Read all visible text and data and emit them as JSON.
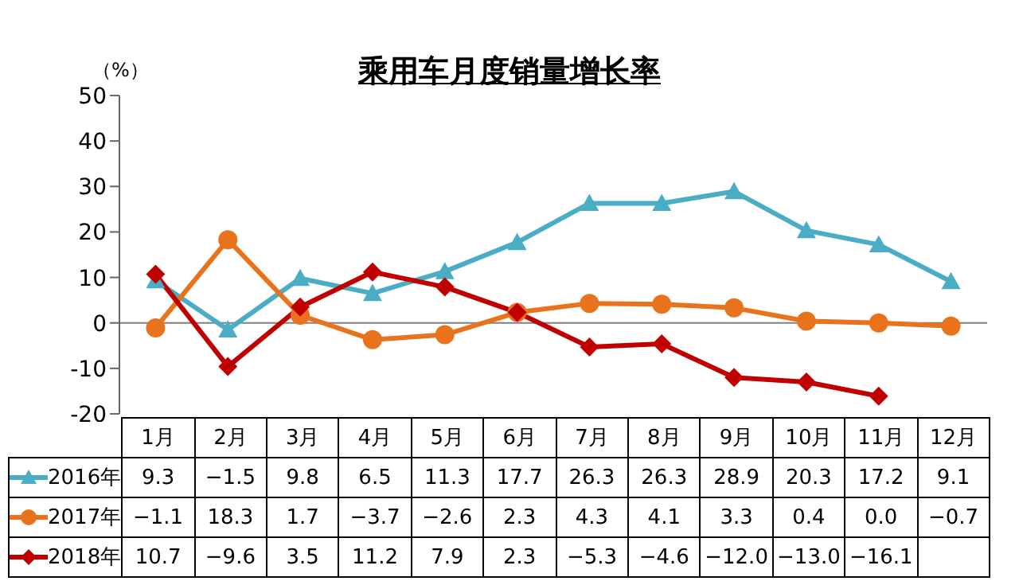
{
  "chart_data": {
    "type": "line",
    "title": "乘用车月度销量增长率",
    "ylabel": "（%）",
    "categories": [
      "1月",
      "2月",
      "3月",
      "4月",
      "5月",
      "6月",
      "7月",
      "8月",
      "9月",
      "10月",
      "11月",
      "12月"
    ],
    "series": [
      {
        "name": "2016年",
        "color": "#4bacc6",
        "marker": "triangle",
        "values": [
          9.3,
          -1.5,
          9.8,
          6.5,
          11.3,
          17.7,
          26.3,
          26.3,
          28.9,
          20.3,
          17.2,
          9.1
        ],
        "value_labels": [
          "9.3",
          "−1.5",
          "9.8",
          "6.5",
          "11.3",
          "17.7",
          "26.3",
          "26.3",
          "28.9",
          "20.3",
          "17.2",
          "9.1"
        ]
      },
      {
        "name": "2017年",
        "color": "#e8731c",
        "marker": "circle",
        "values": [
          -1.1,
          18.3,
          1.7,
          -3.7,
          -2.6,
          2.3,
          4.3,
          4.1,
          3.3,
          0.4,
          0.0,
          -0.7
        ],
        "value_labels": [
          "−1.1",
          "18.3",
          "1.7",
          "−3.7",
          "−2.6",
          "2.3",
          "4.3",
          "4.1",
          "3.3",
          "0.4",
          "0.0",
          "−0.7"
        ]
      },
      {
        "name": "2018年",
        "color": "#c00000",
        "marker": "diamond",
        "values": [
          10.7,
          -9.6,
          3.5,
          11.2,
          7.9,
          2.3,
          -5.3,
          -4.6,
          -12.0,
          -13.0,
          -16.1,
          null
        ],
        "value_labels": [
          "10.7",
          "−9.6",
          "3.5",
          "11.2",
          "7.9",
          "2.3",
          "−5.3",
          "−4.6",
          "−12.0",
          "−13.0",
          "−16.1",
          null
        ]
      }
    ],
    "ylim": [
      -20,
      50
    ],
    "yticks": [
      -20,
      -10,
      0,
      10,
      20,
      30,
      40,
      50
    ],
    "grid": false,
    "ref_lines": [
      {
        "axis": "y",
        "value": 0,
        "color": "#808080"
      }
    ],
    "legend": "bottom left",
    "line_style": "solid"
  }
}
